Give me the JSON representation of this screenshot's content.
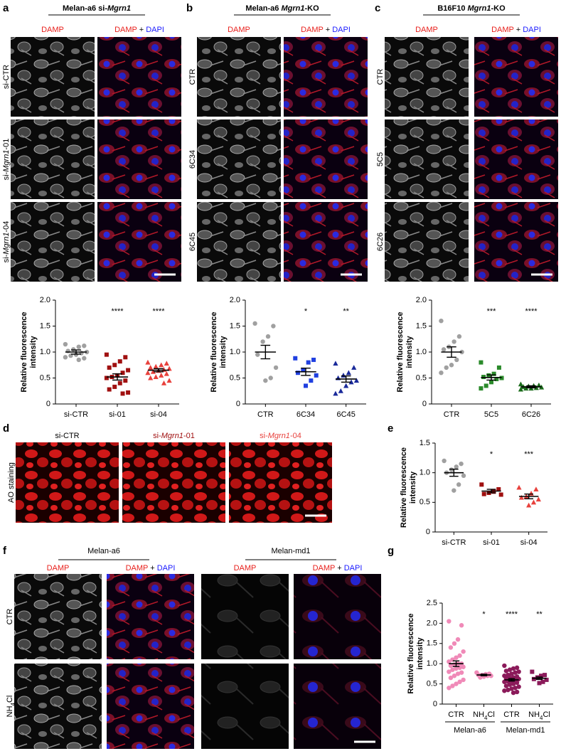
{
  "panels": [
    {
      "letter": "a",
      "title": [
        "Melan-a6 si-",
        {
          "text": "Mgrn1",
          "style": "italic"
        }
      ],
      "columns": [
        [
          {
            "text": "DAMP",
            "color": "#e8201c"
          }
        ],
        [
          {
            "text": "DAMP",
            "color": "#e8201c"
          },
          " + ",
          {
            "text": "DAPI",
            "color": "#1a1aff"
          }
        ]
      ],
      "rows": [
        {
          "label": [
            "si-CTR"
          ],
          "color": "#000000"
        },
        {
          "label": [
            "si-",
            {
              "text": "Mgrn1",
              "style": "italic"
            },
            "-01"
          ],
          "color": "#a01010"
        },
        {
          "label": [
            "si-",
            {
              "text": "Mgrn1",
              "style": "italic"
            },
            "-04"
          ],
          "color": "#e8413c"
        }
      ]
    },
    {
      "letter": "b",
      "title": [
        "Melan-a6 ",
        {
          "text": "Mgrn1",
          "style": "italic"
        },
        "-KO"
      ],
      "columns": [
        [
          {
            "text": "DAMP",
            "color": "#e8201c"
          }
        ],
        [
          {
            "text": "DAMP",
            "color": "#e8201c"
          },
          " + ",
          {
            "text": "DAPI",
            "color": "#1a1aff"
          }
        ]
      ],
      "rows": [
        {
          "label": [
            "CTR"
          ],
          "color": "#000000"
        },
        {
          "label": [
            "6C34"
          ],
          "color": "#2b2bbf"
        },
        {
          "label": [
            "6C45"
          ],
          "color": "#2b2bbf"
        }
      ]
    },
    {
      "letter": "c",
      "title": [
        "B16F10 ",
        {
          "text": "Mgrn1",
          "style": "italic"
        },
        "-KO"
      ],
      "columns": [
        [
          {
            "text": "DAMP",
            "color": "#e8201c"
          }
        ],
        [
          {
            "text": "DAMP",
            "color": "#e8201c"
          },
          " + ",
          {
            "text": "DAPI",
            "color": "#1a1aff"
          }
        ]
      ],
      "rows": [
        {
          "label": [
            "CTR"
          ],
          "color": "#000000"
        },
        {
          "label": [
            "5C5"
          ],
          "color": "#2a8a2a"
        },
        {
          "label": [
            "6C26"
          ],
          "color": "#2a8a2a"
        }
      ]
    },
    {
      "letter": "d",
      "columns": [
        [
          {
            "text": "si-CTR",
            "color": "#000000"
          }
        ],
        [
          {
            "text": "si-",
            "color": "#a01010"
          },
          {
            "text": "Mgrn1",
            "style": "italic",
            "color": "#a01010"
          },
          {
            "text": "-01",
            "color": "#a01010"
          }
        ],
        [
          {
            "text": "si-",
            "color": "#e8413c"
          },
          {
            "text": "Mgrn1",
            "style": "italic",
            "color": "#e8413c"
          },
          {
            "text": "-04",
            "color": "#e8413c"
          }
        ]
      ],
      "rows": [
        {
          "label": [
            "AO staining"
          ],
          "color": "#000000"
        }
      ]
    },
    {
      "letter": "f",
      "groups": [
        {
          "name": "Melan-a6",
          "color": "#f08ab8"
        },
        {
          "name": "Melan-md1",
          "color": "#8b1a5a"
        }
      ],
      "columns": [
        [
          {
            "text": "DAMP",
            "color": "#e8201c"
          }
        ],
        [
          {
            "text": "DAMP",
            "color": "#e8201c"
          },
          " + ",
          {
            "text": "DAPI",
            "color": "#1a1aff"
          }
        ],
        [
          {
            "text": "DAMP",
            "color": "#e8201c"
          }
        ],
        [
          {
            "text": "DAMP",
            "color": "#e8201c"
          },
          " + ",
          {
            "text": "DAPI",
            "color": "#1a1aff"
          }
        ]
      ],
      "rows": [
        {
          "label": [
            "CTR"
          ],
          "color": "#000000"
        },
        {
          "label": [
            "NH",
            {
              "text": "4",
              "style": "sub"
            },
            "Cl"
          ],
          "color": "#8b4513"
        }
      ]
    }
  ],
  "chart_data": [
    {
      "type": "dotplot",
      "ylabel": [
        "Relative fluorescence",
        "intensity"
      ],
      "ylim": [
        0,
        2.0
      ],
      "yticks": [
        0,
        0.5,
        {
          "value": 1.0,
          "label": "1.0"
        },
        1.5,
        {
          "value": 2.0,
          "label": "2.0"
        }
      ],
      "categories": [
        "si-CTR",
        "si-01",
        "si-04"
      ],
      "category_colors": [
        "#000000",
        "#a01010",
        "#e8413c"
      ],
      "groups": [
        {
          "color": "#a0a0a0",
          "marker": "circle",
          "mean": 1.0,
          "sem": 0.04,
          "significance": null,
          "values": [
            1.15,
            1.12,
            1.1,
            1.05,
            1.02,
            1.0,
            0.98,
            0.95,
            0.93,
            0.9,
            0.88,
            0.85
          ]
        },
        {
          "color": "#a01010",
          "marker": "square",
          "mean": 0.52,
          "sem": 0.06,
          "significance": "****",
          "values": [
            0.95,
            0.9,
            0.82,
            0.75,
            0.7,
            0.65,
            0.6,
            0.55,
            0.52,
            0.5,
            0.45,
            0.4,
            0.33,
            0.28,
            0.22,
            0.2
          ]
        },
        {
          "color": "#e8413c",
          "marker": "triangle",
          "mean": 0.65,
          "sem": 0.03,
          "significance": "****",
          "values": [
            0.8,
            0.78,
            0.75,
            0.72,
            0.7,
            0.68,
            0.66,
            0.64,
            0.62,
            0.6,
            0.58,
            0.55,
            0.52,
            0.5,
            0.45,
            0.4
          ]
        }
      ]
    },
    {
      "type": "dotplot",
      "ylabel": [
        "Relative fluorescence",
        "intensity"
      ],
      "ylim": [
        0,
        2.0
      ],
      "yticks": [
        0,
        0.5,
        {
          "value": 1.0,
          "label": "1.0"
        },
        1.5,
        {
          "value": 2.0,
          "label": "2.0"
        }
      ],
      "categories": [
        "CTR",
        "6C34",
        "6C45"
      ],
      "category_colors": [
        "#000000",
        "#2b2bbf",
        "#2b2bbf"
      ],
      "groups": [
        {
          "color": "#a0a0a0",
          "marker": "circle",
          "mean": 1.0,
          "sem": 0.13,
          "significance": null,
          "values": [
            1.55,
            1.5,
            1.3,
            1.2,
            0.95,
            0.7,
            0.5,
            0.45
          ]
        },
        {
          "color": "#2040e0",
          "marker": "square",
          "mean": 0.62,
          "sem": 0.07,
          "significance": "*",
          "values": [
            0.88,
            0.85,
            0.8,
            0.65,
            0.6,
            0.55,
            0.45,
            0.35
          ]
        },
        {
          "color": "#1a2a9a",
          "marker": "triangle",
          "mean": 0.48,
          "sem": 0.06,
          "significance": "**",
          "values": [
            0.78,
            0.7,
            0.6,
            0.55,
            0.5,
            0.45,
            0.42,
            0.35,
            0.25,
            0.2
          ]
        }
      ]
    },
    {
      "type": "dotplot",
      "ylabel": [
        "Relative fluorescence",
        "intensity"
      ],
      "ylim": [
        0,
        2.0
      ],
      "yticks": [
        0,
        0.5,
        {
          "value": 1.0,
          "label": "1.0"
        },
        1.5,
        {
          "value": 2.0,
          "label": "2.0"
        }
      ],
      "categories": [
        "CTR",
        "5C5",
        "6C26"
      ],
      "category_colors": [
        "#000000",
        "#2a8a2a",
        "#1a6b1a"
      ],
      "groups": [
        {
          "color": "#a0a0a0",
          "marker": "circle",
          "mean": 1.0,
          "sem": 0.1,
          "significance": null,
          "values": [
            1.6,
            1.3,
            1.2,
            1.1,
            1.05,
            1.0,
            0.85,
            0.75,
            0.7,
            0.6
          ]
        },
        {
          "color": "#2a8a2a",
          "marker": "square",
          "mean": 0.51,
          "sem": 0.05,
          "significance": "***",
          "values": [
            0.8,
            0.7,
            0.58,
            0.55,
            0.52,
            0.5,
            0.48,
            0.42,
            0.35,
            0.3
          ]
        },
        {
          "color": "#1a6b1a",
          "marker": "triangle",
          "mean": 0.33,
          "sem": 0.02,
          "significance": "****",
          "values": [
            0.38,
            0.36,
            0.35,
            0.34,
            0.33,
            0.32,
            0.31,
            0.3,
            0.3,
            0.28
          ]
        }
      ]
    },
    {
      "type": "dotplot",
      "letter": "e",
      "ylabel": [
        "Relative fluorescence",
        "intensity"
      ],
      "ylim": [
        0,
        1.5
      ],
      "yticks": [
        0,
        0.5,
        {
          "value": 1.0,
          "label": "1.0"
        },
        1.5
      ],
      "categories": [
        "si-CTR",
        "si-01",
        "si-04"
      ],
      "category_colors": [
        "#000000",
        "#a01010",
        "#e8413c"
      ],
      "groups": [
        {
          "color": "#a0a0a0",
          "marker": "circle",
          "mean": 1.0,
          "sem": 0.06,
          "significance": null,
          "values": [
            1.2,
            1.15,
            1.1,
            1.05,
            1.0,
            0.95,
            0.8,
            0.7
          ]
        },
        {
          "color": "#a01010",
          "marker": "square",
          "mean": 0.69,
          "sem": 0.03,
          "significance": "*",
          "values": [
            0.8,
            0.72,
            0.68,
            0.66,
            0.64,
            0.63
          ]
        },
        {
          "color": "#e8413c",
          "marker": "triangle",
          "mean": 0.6,
          "sem": 0.04,
          "significance": "***",
          "values": [
            0.75,
            0.72,
            0.65,
            0.6,
            0.58,
            0.55,
            0.5,
            0.45
          ]
        }
      ]
    },
    {
      "type": "dotplot",
      "letter": "g",
      "ylabel": [
        "Relative fluorescence",
        "intensity"
      ],
      "ylim": [
        0,
        2.5
      ],
      "yticks": [
        0,
        0.5,
        {
          "value": 1.0,
          "label": "1.0"
        },
        1.5,
        {
          "value": 2.0,
          "label": "2.0"
        },
        2.5
      ],
      "categories": [
        "CTR",
        [
          "NH",
          {
            "text": "4",
            "style": "sub"
          },
          "Cl"
        ],
        "CTR",
        [
          "NH",
          {
            "text": "4",
            "style": "sub"
          },
          "Cl"
        ]
      ],
      "category_colors": [
        "#000000",
        "#8b4513",
        "#000000",
        "#8b4513"
      ],
      "group_labels": [
        {
          "name": "Melan-a6",
          "color": "#f08ab8"
        },
        {
          "name": "Melan-md1",
          "color": "#8b1a5a"
        }
      ],
      "groups": [
        {
          "color": "#f08ab8",
          "marker": "circle",
          "mean": 1.0,
          "sem": 0.07,
          "significance": null,
          "values": [
            2.05,
            1.95,
            1.6,
            1.5,
            1.4,
            1.3,
            1.2,
            1.15,
            1.1,
            1.05,
            1.0,
            1.0,
            0.98,
            0.95,
            0.92,
            0.9,
            0.88,
            0.85,
            0.8,
            0.78,
            0.75,
            0.7,
            0.65,
            0.6,
            0.55,
            0.5,
            0.45,
            0.4
          ]
        },
        {
          "color": "#f08ab8",
          "marker": "circle",
          "mean": 0.72,
          "sem": 0.02,
          "significance": "*",
          "values": [
            0.78,
            0.75,
            0.74,
            0.72,
            0.72,
            0.7,
            0.7,
            0.68,
            0.66
          ]
        },
        {
          "color": "#8b1a5a",
          "marker": "circle",
          "mean": 0.6,
          "sem": 0.03,
          "significance": "****",
          "values": [
            0.95,
            0.9,
            0.88,
            0.85,
            0.82,
            0.8,
            0.78,
            0.75,
            0.72,
            0.7,
            0.68,
            0.66,
            0.65,
            0.63,
            0.62,
            0.6,
            0.58,
            0.56,
            0.55,
            0.53,
            0.5,
            0.48,
            0.45,
            0.43,
            0.4,
            0.38,
            0.35,
            0.33,
            0.3,
            0.28
          ]
        },
        {
          "color": "#8b1a5a",
          "marker": "square",
          "mean": 0.64,
          "sem": 0.03,
          "significance": "**",
          "values": [
            0.8,
            0.72,
            0.7,
            0.66,
            0.62,
            0.6,
            0.55,
            0.52
          ]
        }
      ]
    }
  ]
}
